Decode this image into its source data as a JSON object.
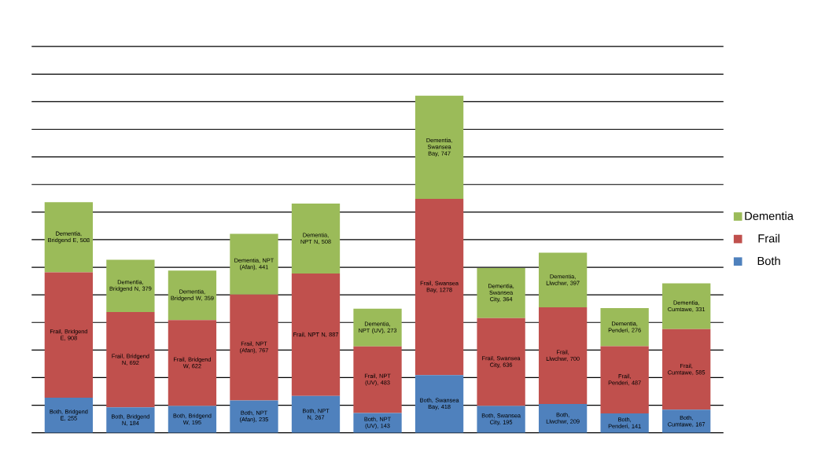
{
  "chart_data": {
    "type": "bar",
    "stacked": true,
    "categories": [
      null,
      null,
      null,
      null,
      null,
      null,
      null,
      null,
      null,
      null,
      null
    ],
    "series": [
      {
        "name": "Both",
        "color": "#4f81bd",
        "values": [
          255,
          184,
          195,
          235,
          267,
          143,
          418,
          195,
          209,
          141,
          167
        ],
        "value_labels": [
          "Both, Bridgend E, 255",
          "Both, Bridgend N, 184",
          "Both, Bridgend W, 195",
          "Both, NPT (Afan), 235",
          "Both, NPT N, 267",
          "Both, NPT (UV), 143",
          "Both, Swansea Bay, 418",
          "Both, Swansea City, 195",
          "Both, Llwchwr, 209",
          "Both, Penderi, 141",
          "Both, Cumtawe, 167"
        ]
      },
      {
        "name": "Frail",
        "color": "#c0504d",
        "values": [
          908,
          692,
          622,
          767,
          887,
          483,
          1278,
          636,
          700,
          487,
          585
        ],
        "value_labels": [
          "Frail, Bridgend E, 908",
          "Frail, Bridgend N, 692",
          "Frail, Bridgend W, 622",
          "Frail, NPT (Afan), 767",
          "Frail, NPT N, 887",
          "Frail, NPT (UV), 483",
          "Frail, Swansea Bay, 1278",
          "Frail, Swansea City, 636",
          "Frail, Llwchwr, 700",
          "Frail, Penderi, 487",
          "Frail, Cumtawe, 585"
        ]
      },
      {
        "name": "Dementia",
        "color": "#9bbb59",
        "values": [
          508,
          379,
          359,
          441,
          508,
          273,
          747,
          364,
          397,
          276,
          331
        ],
        "value_labels": [
          "Dementia, Bridgend E, 508",
          "Dementia, Bridgend N, 379",
          "Dementia, Bridgend W, 359",
          "Dementia, NPT (Afan), 441",
          "Dementia, NPT N, 508",
          "Dementia, NPT (UV), 273",
          "Dementia, Swansea Bay, 747",
          "Dementia, Swansea City, 364",
          "Dementia, Llwchwr, 397",
          "Dementia, Penderi, 276",
          "Dementia, Cumtawe, 331"
        ]
      }
    ],
    "grid": "y",
    "legend": "right",
    "tick_labels": false
  }
}
